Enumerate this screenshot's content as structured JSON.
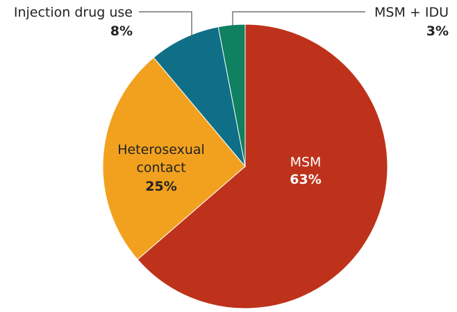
{
  "chart_data": {
    "type": "pie",
    "slices": [
      {
        "label": "MSM",
        "value": 63,
        "value_label": "63%",
        "color": "#be321b"
      },
      {
        "label": "Heterosexual contact",
        "label_lines": [
          "Heterosexual",
          "contact"
        ],
        "value": 25,
        "value_label": "25%",
        "color": "#f2a11f"
      },
      {
        "label": "Injection drug use",
        "value": 8,
        "value_label": "8%",
        "color": "#0e6f86"
      },
      {
        "label": "MSM + IDU",
        "value": 3,
        "value_label": "3%",
        "color": "#0f8060"
      }
    ]
  }
}
